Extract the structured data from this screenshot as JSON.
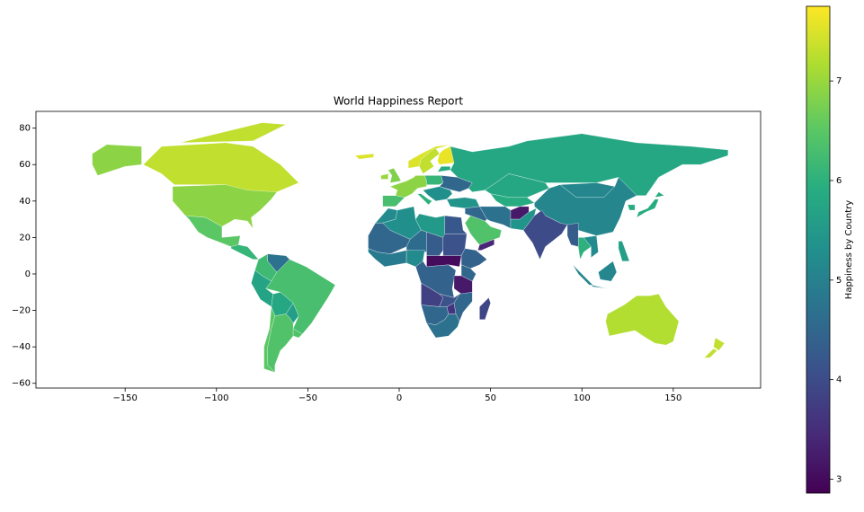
{
  "chart_data": {
    "type": "choropleth",
    "title": "World Happiness Report",
    "xlim": [
      -198.8,
      197.8
    ],
    "ylim": [
      -62.6,
      89.2
    ],
    "xticks": [
      {
        "value": -150,
        "label": "−150"
      },
      {
        "value": -100,
        "label": "−100"
      },
      {
        "value": -50,
        "label": "−50"
      },
      0,
      50,
      100,
      150
    ],
    "yticks": [
      {
        "value": -60,
        "label": "−60"
      },
      {
        "value": -40,
        "label": "−40"
      },
      {
        "value": -20,
        "label": "−20"
      },
      0,
      20,
      40,
      60,
      80
    ],
    "values": [
      7.3,
      6.9,
      6.5,
      6.1,
      4.7,
      6.2,
      6.3,
      5.7,
      5.8,
      5.6,
      6.4,
      6.5,
      6.4,
      7.5,
      6.8,
      7.0,
      7.5,
      7.3,
      7.6,
      6.9,
      6.3,
      6.0,
      6.1,
      5.3,
      4.5,
      5.9,
      5.8,
      5.4,
      5.8,
      5.9,
      5.1,
      5.1,
      5.9,
      5.9,
      4.7,
      3.2,
      5.4,
      4.0,
      6.0,
      4.3,
      5.2,
      5.1,
      5.6,
      7.2,
      7.3,
      6.4,
      3.4,
      4.5,
      5.2,
      5.3,
      5.5,
      4.2,
      4.5,
      4.6,
      4.9,
      5.2,
      4.3,
      4.1,
      3.0,
      4.4,
      4.5,
      4.4,
      3.2,
      3.8,
      4.1,
      4.5,
      3.6,
      4.5,
      4.7,
      3.9
    ],
    "colorbar": {
      "label": "Happiness by Country",
      "lim": [
        2.86,
        7.75
      ],
      "ticks": [
        3,
        4,
        5,
        6,
        7
      ],
      "colormap": "viridis"
    }
  }
}
